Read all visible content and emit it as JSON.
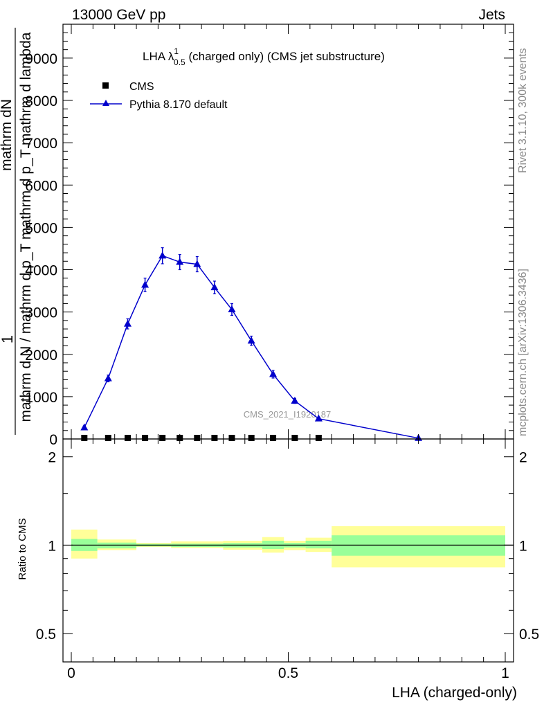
{
  "header": {
    "left": "13000 GeV pp",
    "right": "Jets"
  },
  "title": {
    "main": "LHA λ",
    "sup": "1",
    "sub": "0.5",
    "rest": " (charged only) (CMS jet substructure)"
  },
  "side_labels": {
    "rivet": "Rivet 3.1.10,  300k events",
    "mcplots": "mcplots.cern.ch [arXiv:1306.3436]"
  },
  "watermark": "CMS_2021_I1920187",
  "colors": {
    "mc": "#0000cc",
    "data": "#000000",
    "band_inner": "#99ff99",
    "band_outer": "#ffff99"
  },
  "chart_data": [
    {
      "type": "scatter",
      "panel": "main",
      "ylabel_numer": "1",
      "ylabel_denom_lines": [
        "mathrm d N / mathrm d p_T mathrm d p_T mathrm d lambda",
        "mathrm dN"
      ],
      "xlim": [
        0,
        1
      ],
      "ylim": [
        0,
        9800
      ],
      "yticks": [
        0,
        1000,
        2000,
        3000,
        4000,
        5000,
        6000,
        7000,
        8000,
        9000
      ],
      "ytick_labels": [
        "0",
        "1000",
        "2000",
        "3000",
        "4000",
        "5000",
        "6000",
        "7000",
        "8000",
        "9000"
      ],
      "legend": [
        "CMS",
        "Pythia 8.170 default"
      ],
      "legend_position": "top-left",
      "series": [
        {
          "name": "CMS",
          "marker": "square",
          "x": [
            0.03,
            0.085,
            0.13,
            0.17,
            0.21,
            0.25,
            0.29,
            0.33,
            0.37,
            0.415,
            0.465,
            0.515,
            0.57
          ],
          "y": [
            0,
            0,
            0,
            0,
            0,
            0,
            0,
            0,
            0,
            0,
            0,
            0,
            0
          ]
        },
        {
          "name": "Pythia 8.170 default",
          "marker": "triangle",
          "x": [
            0.03,
            0.085,
            0.13,
            0.17,
            0.21,
            0.25,
            0.29,
            0.33,
            0.37,
            0.415,
            0.465,
            0.515,
            0.57,
            0.8
          ],
          "y": [
            270,
            1430,
            2720,
            3640,
            4330,
            4180,
            4130,
            3580,
            3060,
            2320,
            1530,
            900,
            480,
            20
          ],
          "yerr": [
            40,
            80,
            120,
            160,
            190,
            180,
            180,
            150,
            140,
            110,
            90,
            60,
            40,
            10
          ]
        }
      ]
    },
    {
      "type": "area",
      "panel": "ratio",
      "ylabel": "Ratio to CMS",
      "xlabel": "LHA (charged-only)",
      "log_y": true,
      "xlim": [
        0,
        1
      ],
      "ylim": [
        0.4,
        2.3
      ],
      "xticks": [
        0,
        0.5,
        1
      ],
      "xtick_labels": [
        "0",
        "0.5",
        "1"
      ],
      "yticks": [
        0.5,
        1,
        2
      ],
      "ytick_labels": [
        "0.5",
        "1",
        "2"
      ],
      "bands": [
        {
          "x0": 0.0,
          "x1": 0.06,
          "inner": [
            0.955,
            1.05
          ],
          "outer": [
            0.9,
            1.13
          ]
        },
        {
          "x0": 0.06,
          "x1": 0.15,
          "inner": [
            0.975,
            1.02
          ],
          "outer": [
            0.962,
            1.045
          ]
        },
        {
          "x0": 0.15,
          "x1": 0.23,
          "inner": [
            0.99,
            1.01
          ],
          "outer": [
            0.985,
            1.018
          ]
        },
        {
          "x0": 0.23,
          "x1": 0.35,
          "inner": [
            0.985,
            1.012
          ],
          "outer": [
            0.978,
            1.03
          ]
        },
        {
          "x0": 0.35,
          "x1": 0.44,
          "inner": [
            0.982,
            1.017
          ],
          "outer": [
            0.965,
            1.035
          ]
        },
        {
          "x0": 0.44,
          "x1": 0.49,
          "inner": [
            0.97,
            1.035
          ],
          "outer": [
            0.943,
            1.065
          ]
        },
        {
          "x0": 0.49,
          "x1": 0.54,
          "inner": [
            0.982,
            1.018
          ],
          "outer": [
            0.962,
            1.035
          ]
        },
        {
          "x0": 0.54,
          "x1": 0.6,
          "inner": [
            0.975,
            1.035
          ],
          "outer": [
            0.948,
            1.06
          ]
        },
        {
          "x0": 0.6,
          "x1": 1.0,
          "inner": [
            0.92,
            1.08
          ],
          "outer": [
            0.84,
            1.16
          ]
        }
      ],
      "reference": 1
    }
  ]
}
